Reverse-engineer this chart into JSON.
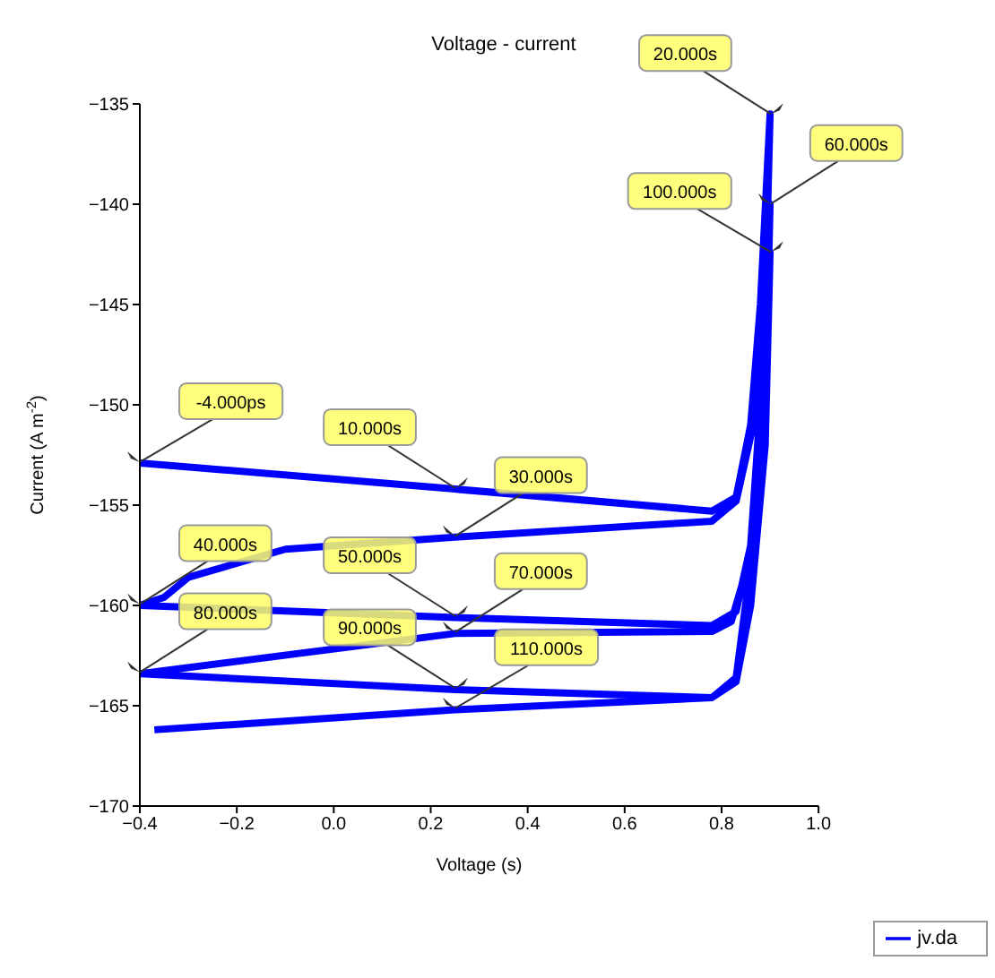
{
  "chart_data": {
    "type": "line",
    "title": "Voltage - current",
    "xlabel": "Voltage (s)",
    "ylabel": "Current (A m$^{-2}$)",
    "xlim": [
      -0.4,
      1.0
    ],
    "xticks": [
      -0.4,
      -0.2,
      {
        "value": 0,
        "label": "0.0"
      },
      0.2,
      0.4,
      0.6,
      0.8,
      {
        "value": 1,
        "label": "1.0"
      }
    ],
    "ylim": [
      -170,
      -135
    ],
    "yticks": [
      -170,
      -165,
      -160,
      -155,
      -150,
      -145,
      -140,
      -135
    ],
    "grid": false,
    "legend": "bottom right",
    "marker": "none",
    "line_style": "solid",
    "series": [
      {
        "name": "jv.da",
        "color": "#0000ff",
        "x": [
          -0.4,
          0.25,
          0.78,
          0.83,
          0.86,
          0.88,
          0.9,
          0.89,
          0.87,
          0.83,
          0.78,
          0.25,
          -0.1,
          -0.3,
          -0.35,
          -0.4,
          0.25,
          0.78,
          0.83,
          0.86,
          0.88,
          0.9,
          0.89,
          0.86,
          0.82,
          0.78,
          0.25,
          -0.4,
          0.25,
          0.78,
          0.83,
          0.86,
          0.88,
          0.9,
          0.89,
          0.86,
          0.83,
          0.78,
          0.25,
          -0.37
        ],
        "values": [
          -152.9,
          -154.2,
          -155.3,
          -154.6,
          -151,
          -145,
          -135.5,
          -145,
          -150.5,
          -154.8,
          -155.8,
          -156.6,
          -157.2,
          -158.6,
          -159.6,
          -160,
          -160.6,
          -161,
          -160.3,
          -157,
          -150,
          -140,
          -150,
          -157.5,
          -160.8,
          -161.3,
          -161.4,
          -163.4,
          -164.2,
          -164.6,
          -163.6,
          -158,
          -150,
          -142.4,
          -152,
          -160,
          -163.8,
          -164.6,
          -165.2,
          -166.2
        ]
      }
    ],
    "annotations": [
      {
        "text": "-4.000ps",
        "x": -0.4,
        "y": -152.9
      },
      {
        "text": "10.000s",
        "x": 0.25,
        "y": -154.2
      },
      {
        "text": "20.000s",
        "x": 0.9,
        "y": -135.5
      },
      {
        "text": "30.000s",
        "x": 0.25,
        "y": -156.6
      },
      {
        "text": "40.000s",
        "x": -0.4,
        "y": -160
      },
      {
        "text": "50.000s",
        "x": 0.25,
        "y": -160.6
      },
      {
        "text": "60.000s",
        "x": 0.9,
        "y": -140
      },
      {
        "text": "70.000s",
        "x": 0.25,
        "y": -161.4
      },
      {
        "text": "80.000s",
        "x": -0.4,
        "y": -163.4
      },
      {
        "text": "90.000s",
        "x": 0.25,
        "y": -164.2
      },
      {
        "text": "100.000s",
        "x": 0.9,
        "y": -142.4
      },
      {
        "text": "110.000s",
        "x": 0.25,
        "y": -165.2
      }
    ]
  }
}
